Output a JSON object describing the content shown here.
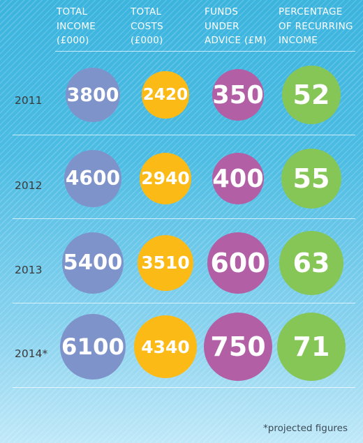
{
  "chart_data": {
    "type": "bubble-table",
    "columns": [
      {
        "key": "income",
        "label": "TOTAL\nINCOME\n(£000)",
        "color": "#7f93cb"
      },
      {
        "key": "costs",
        "label": "TOTAL\nCOSTS\n(£000)",
        "color": "#fbba16"
      },
      {
        "key": "funds",
        "label": "FUNDS\nUNDER\nADVICE (£M)",
        "color": "#b25fa6"
      },
      {
        "key": "recurring",
        "label": "PERCENTAGE\nOF RECURRING\nINCOME",
        "color": "#86c657"
      }
    ],
    "rows": [
      {
        "year": "2011",
        "values": [
          3800,
          2420,
          350,
          52
        ]
      },
      {
        "year": "2012",
        "values": [
          4600,
          2940,
          400,
          55
        ]
      },
      {
        "year": "2013",
        "values": [
          5400,
          3510,
          600,
          63
        ]
      },
      {
        "year": "2014*",
        "values": [
          6100,
          4340,
          750,
          71
        ]
      }
    ],
    "footnote": "*projected figures"
  }
}
